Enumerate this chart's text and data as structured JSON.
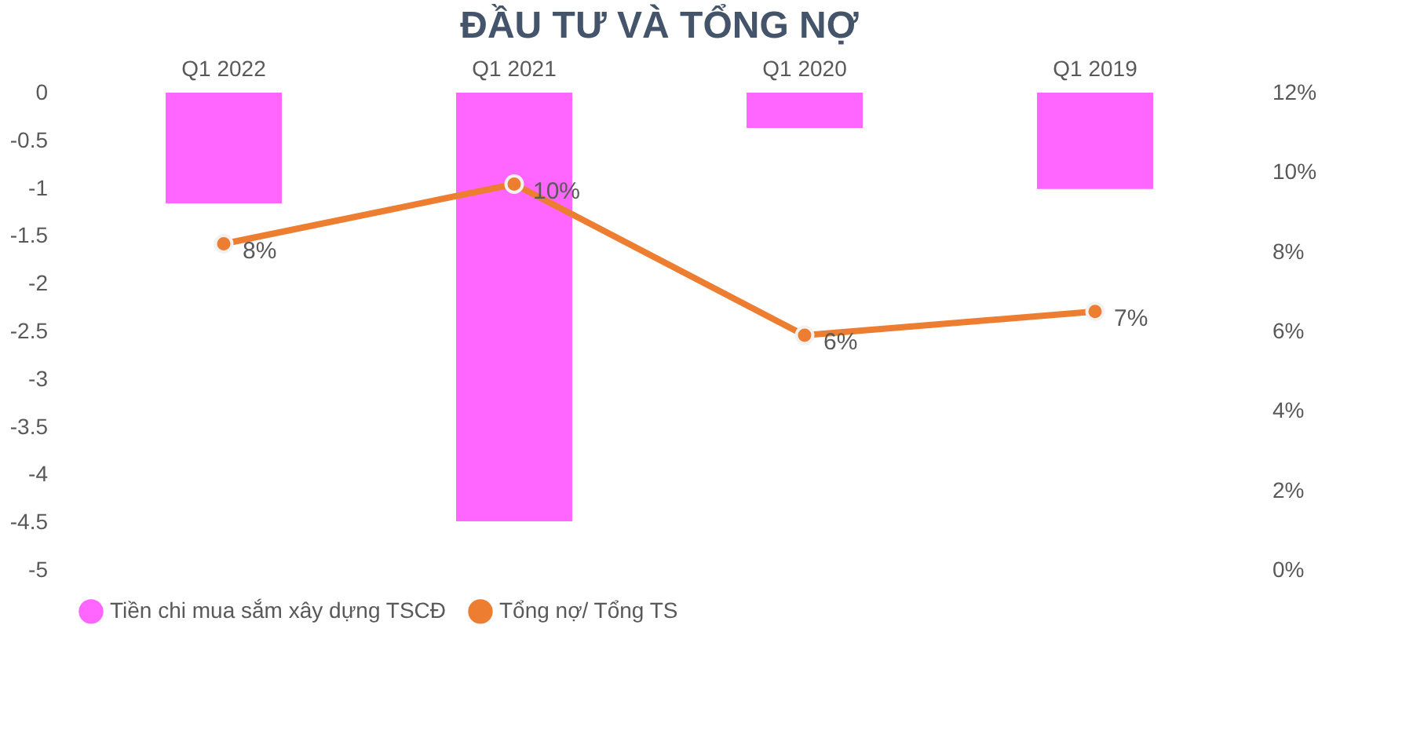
{
  "chart_data": {
    "type": "bar",
    "title": "ĐẦU TƯ VÀ TỔNG NỢ",
    "categories": [
      "Q1 2022",
      "Q1 2021",
      "Q1 2020",
      "Q1 2019"
    ],
    "series": [
      {
        "name": "Tiền chi mua sắm xây dựng TSCĐ",
        "color": "#ff66ff",
        "values": [
          -1.16,
          -4.49,
          -0.37,
          -1.01
        ]
      },
      {
        "name": "Tổng nợ/ Tổng TS",
        "type": "line",
        "axis": "y2",
        "color": "#ed7d31",
        "values": [
          8.2,
          9.7,
          5.9,
          6.5
        ],
        "value_labels": [
          "8%",
          "10%",
          "6%",
          "7%"
        ]
      }
    ],
    "ylim": [
      -5,
      0
    ],
    "yticks": [
      0,
      -0.5,
      -1,
      -1.5,
      -2,
      -2.5,
      -3,
      -3.5,
      -4,
      -4.5,
      -5
    ],
    "y2lim": [
      0,
      12
    ],
    "y2ticks": [
      {
        "value": 0,
        "label": "0%"
      },
      {
        "value": 2,
        "label": "2%"
      },
      {
        "value": 4,
        "label": "4%"
      },
      {
        "value": 6,
        "label": "6%"
      },
      {
        "value": 8,
        "label": "8%"
      },
      {
        "value": 10,
        "label": "10%"
      },
      {
        "value": 12,
        "label": "12%"
      }
    ],
    "grid": false,
    "legend": "bottom",
    "marker": "circle",
    "line_style": "solid"
  }
}
